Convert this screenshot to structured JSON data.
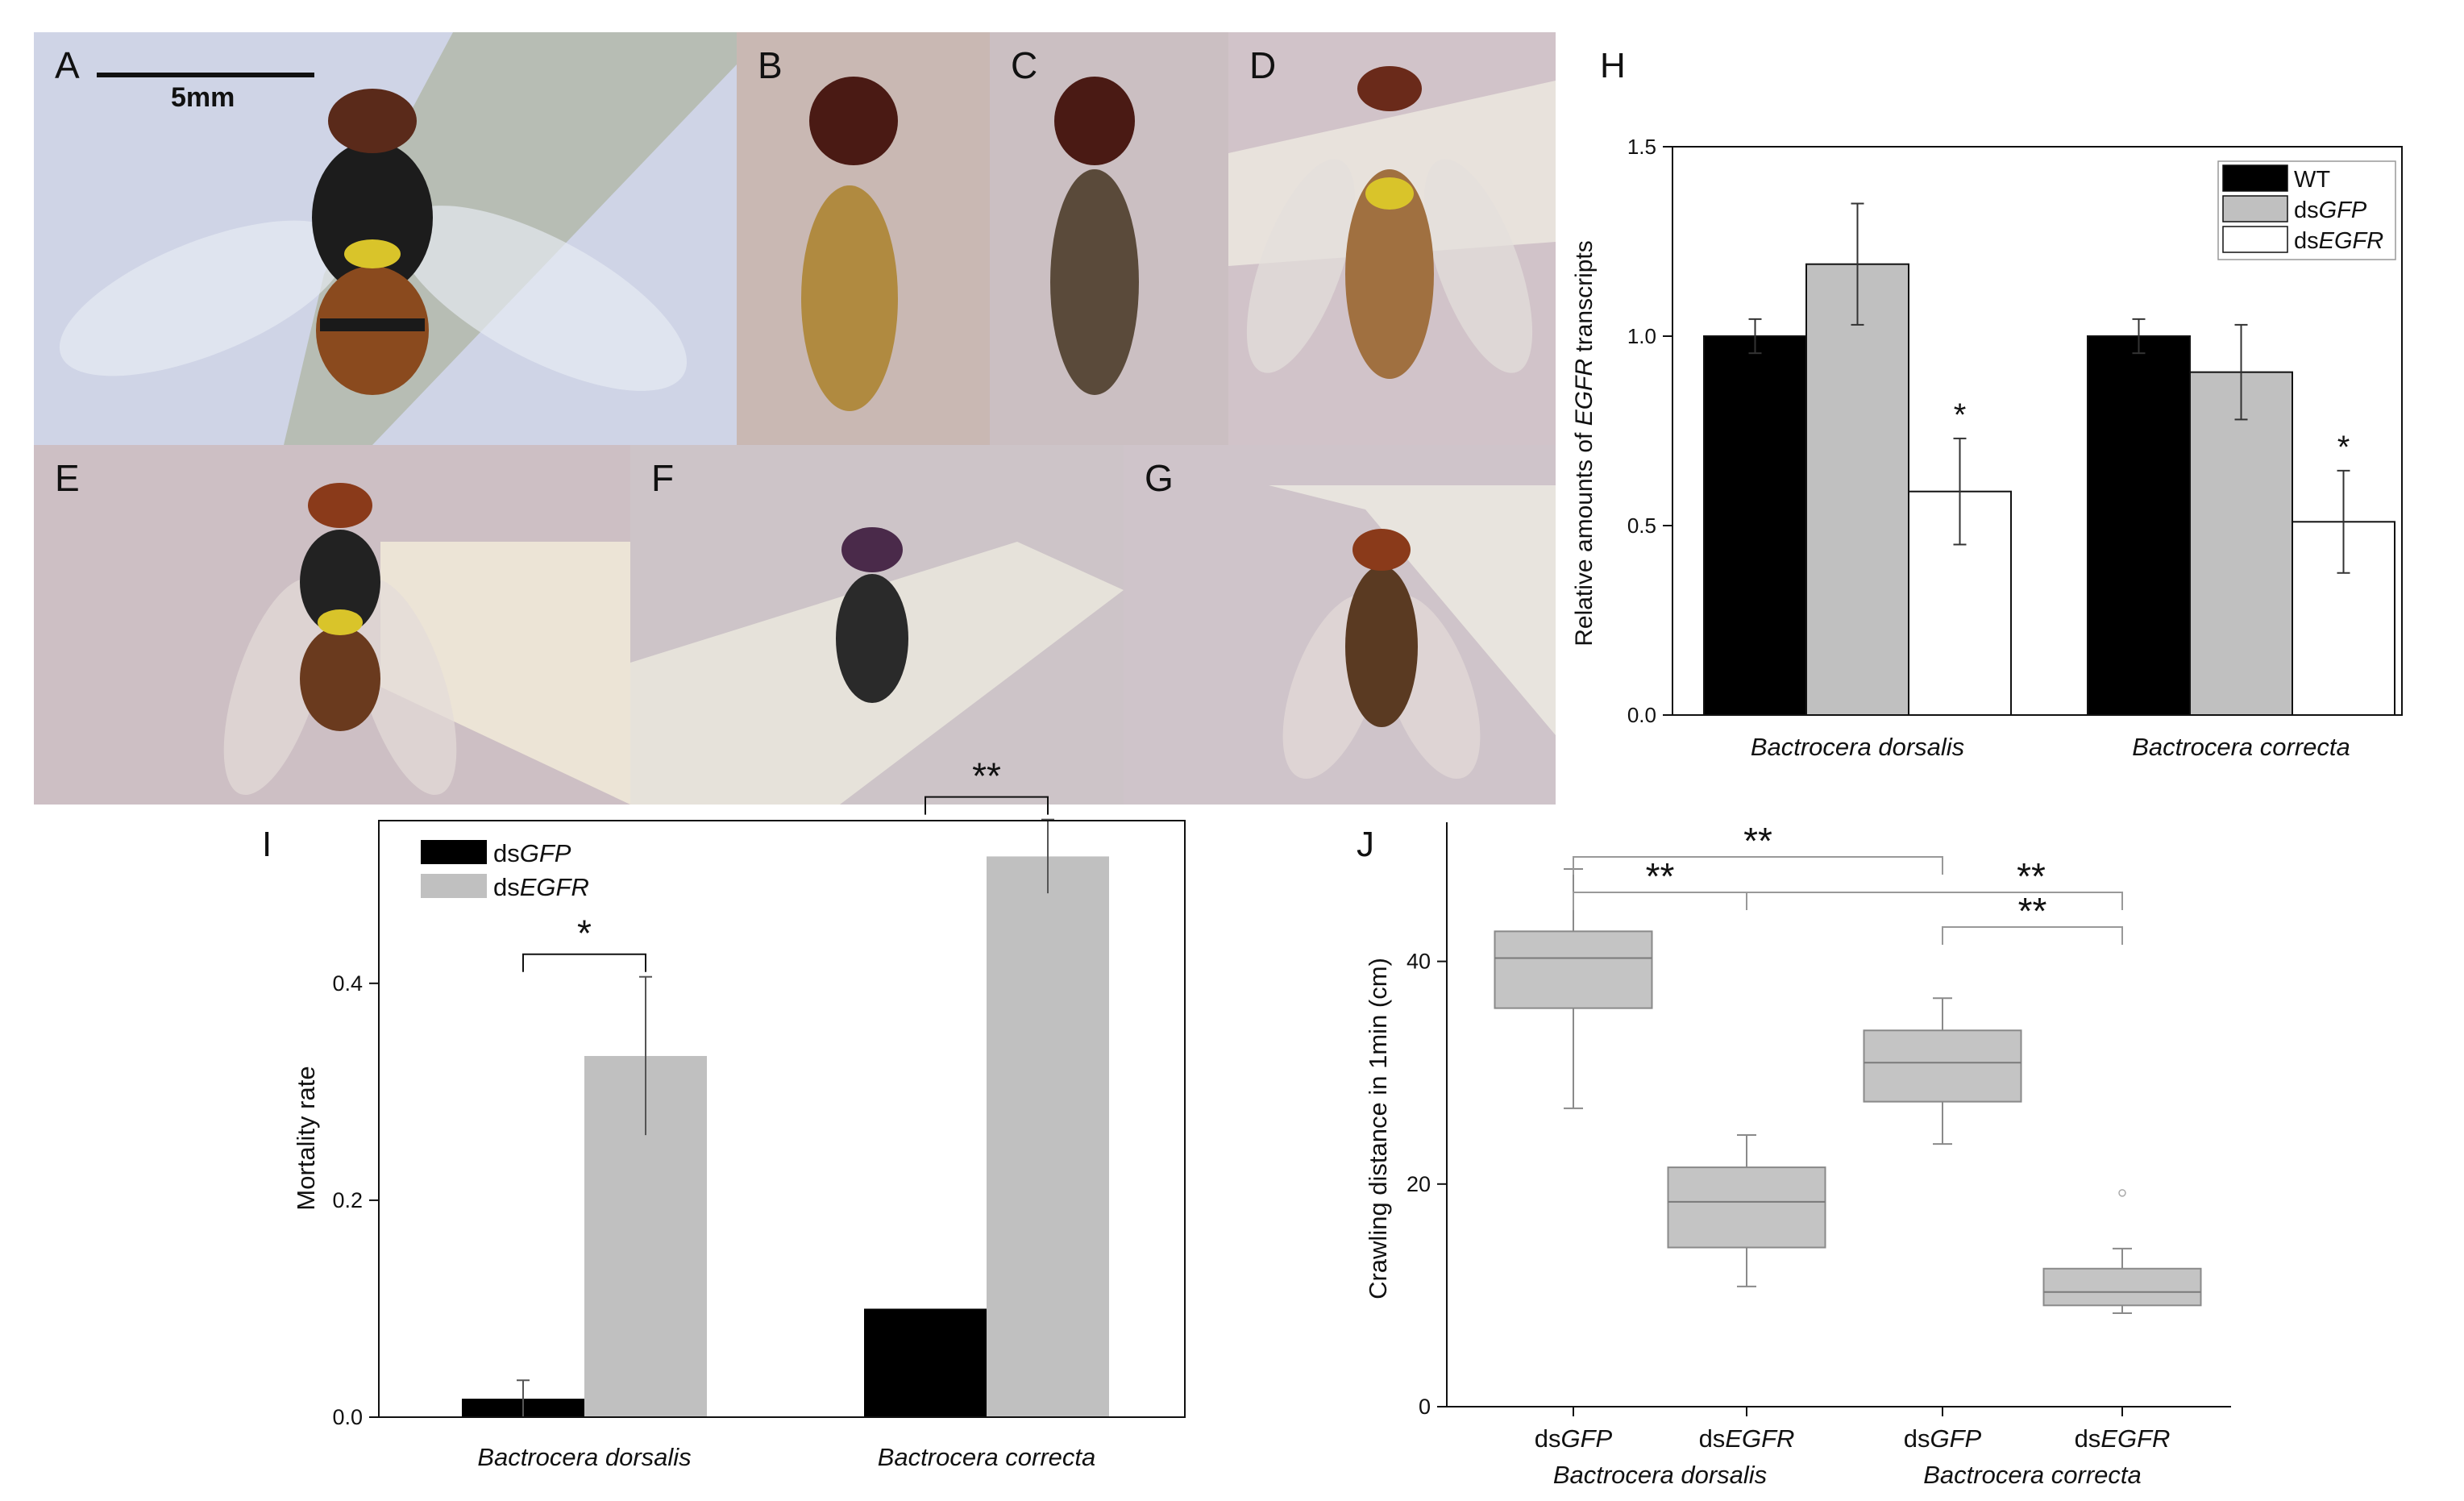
{
  "photos": {
    "A": {
      "label": "A",
      "scale_bar": "5mm"
    },
    "B": {
      "label": "B"
    },
    "C": {
      "label": "C"
    },
    "D": {
      "label": "D"
    },
    "E": {
      "label": "E"
    },
    "F": {
      "label": "F"
    },
    "G": {
      "label": "G"
    }
  },
  "colors": {
    "black": "#000000",
    "gray": "#c0c0c0",
    "white": "#ffffff",
    "box_fill": "#c4c4c4",
    "box_stroke": "#8a8a8a"
  },
  "chart_data": [
    {
      "panel": "H",
      "type": "bar",
      "ylabel_pre": "Relative amounts of ",
      "ylabel_italic": "EGFR",
      "ylabel_post": " transcripts",
      "ylim": [
        0,
        1.5
      ],
      "yticks": [
        "0.0",
        "0.5",
        "1.0",
        "1.5"
      ],
      "categories": [
        "Bactrocera dorsalis",
        "Bactrocera correcta"
      ],
      "legend_position": "top-right",
      "series": [
        {
          "name": "WT",
          "name_prefix": "",
          "name_italic": "WT",
          "color": "#000000",
          "values": [
            1.0,
            1.0
          ],
          "errors": [
            0.045,
            0.045
          ],
          "sig": [
            "",
            ""
          ]
        },
        {
          "name": "dsGFP",
          "name_prefix": "ds",
          "name_italic": "GFP",
          "color": "#c0c0c0",
          "values": [
            1.19,
            0.905
          ],
          "errors": [
            0.16,
            0.125
          ],
          "sig": [
            "",
            ""
          ]
        },
        {
          "name": "dsEGFR",
          "name_prefix": "ds",
          "name_italic": "EGFR",
          "color": "#ffffff",
          "values": [
            0.59,
            0.51
          ],
          "errors": [
            0.14,
            0.135
          ],
          "sig": [
            "*",
            "*"
          ]
        }
      ]
    },
    {
      "panel": "I",
      "type": "bar",
      "ylabel": "Mortality rate",
      "ylim": [
        0,
        0.55
      ],
      "yticks": [
        "0.0",
        "0.2",
        "0.4"
      ],
      "categories": [
        "Bactrocera dorsalis",
        "Bactrocera correcta"
      ],
      "legend_position": "top-left",
      "series": [
        {
          "name": "dsGFP",
          "name_prefix": "ds",
          "name_italic": "GFP",
          "color": "#000000",
          "values": [
            0.017,
            0.1
          ],
          "errors": [
            0.017,
            0
          ]
        },
        {
          "name": "dsEGFR",
          "name_prefix": "ds",
          "name_italic": "EGFR",
          "color": "#c0c0c0",
          "values": [
            0.333,
            0.517
          ],
          "errors": [
            0.073,
            0.034
          ]
        }
      ],
      "significance": [
        "*",
        "**"
      ]
    },
    {
      "panel": "J",
      "type": "box",
      "ylabel": "Crawling distance in 1min (cm)",
      "ylim": [
        0,
        52.5
      ],
      "yticks": [
        "0",
        "20",
        "40"
      ],
      "boxes": [
        {
          "prefix": "ds",
          "italic": "GFP",
          "min": 26.8,
          "q1": 35.8,
          "median": 40.3,
          "q3": 42.7,
          "max": 48.3,
          "outliers": []
        },
        {
          "prefix": "ds",
          "italic": "EGFR",
          "min": 10.8,
          "q1": 14.3,
          "median": 18.4,
          "q3": 21.5,
          "max": 24.4,
          "outliers": []
        },
        {
          "prefix": "ds",
          "italic": "GFP",
          "min": 23.6,
          "q1": 27.4,
          "median": 30.9,
          "q3": 33.8,
          "max": 36.7,
          "outliers": []
        },
        {
          "prefix": "ds",
          "italic": "EGFR",
          "min": 8.4,
          "q1": 9.1,
          "median": 10.3,
          "q3": 12.4,
          "max": 14.2,
          "outliers": [
            19.2
          ]
        }
      ],
      "groups": [
        "Bactrocera dorsalis",
        "Bactrocera correcta"
      ],
      "comparisons": [
        {
          "a": 0,
          "b": 2,
          "label": "**"
        },
        {
          "a": 0,
          "b": 1,
          "label": "**"
        },
        {
          "a": 1,
          "b": 3,
          "label": "**"
        },
        {
          "a": 2,
          "b": 3,
          "label": "**"
        }
      ]
    }
  ]
}
